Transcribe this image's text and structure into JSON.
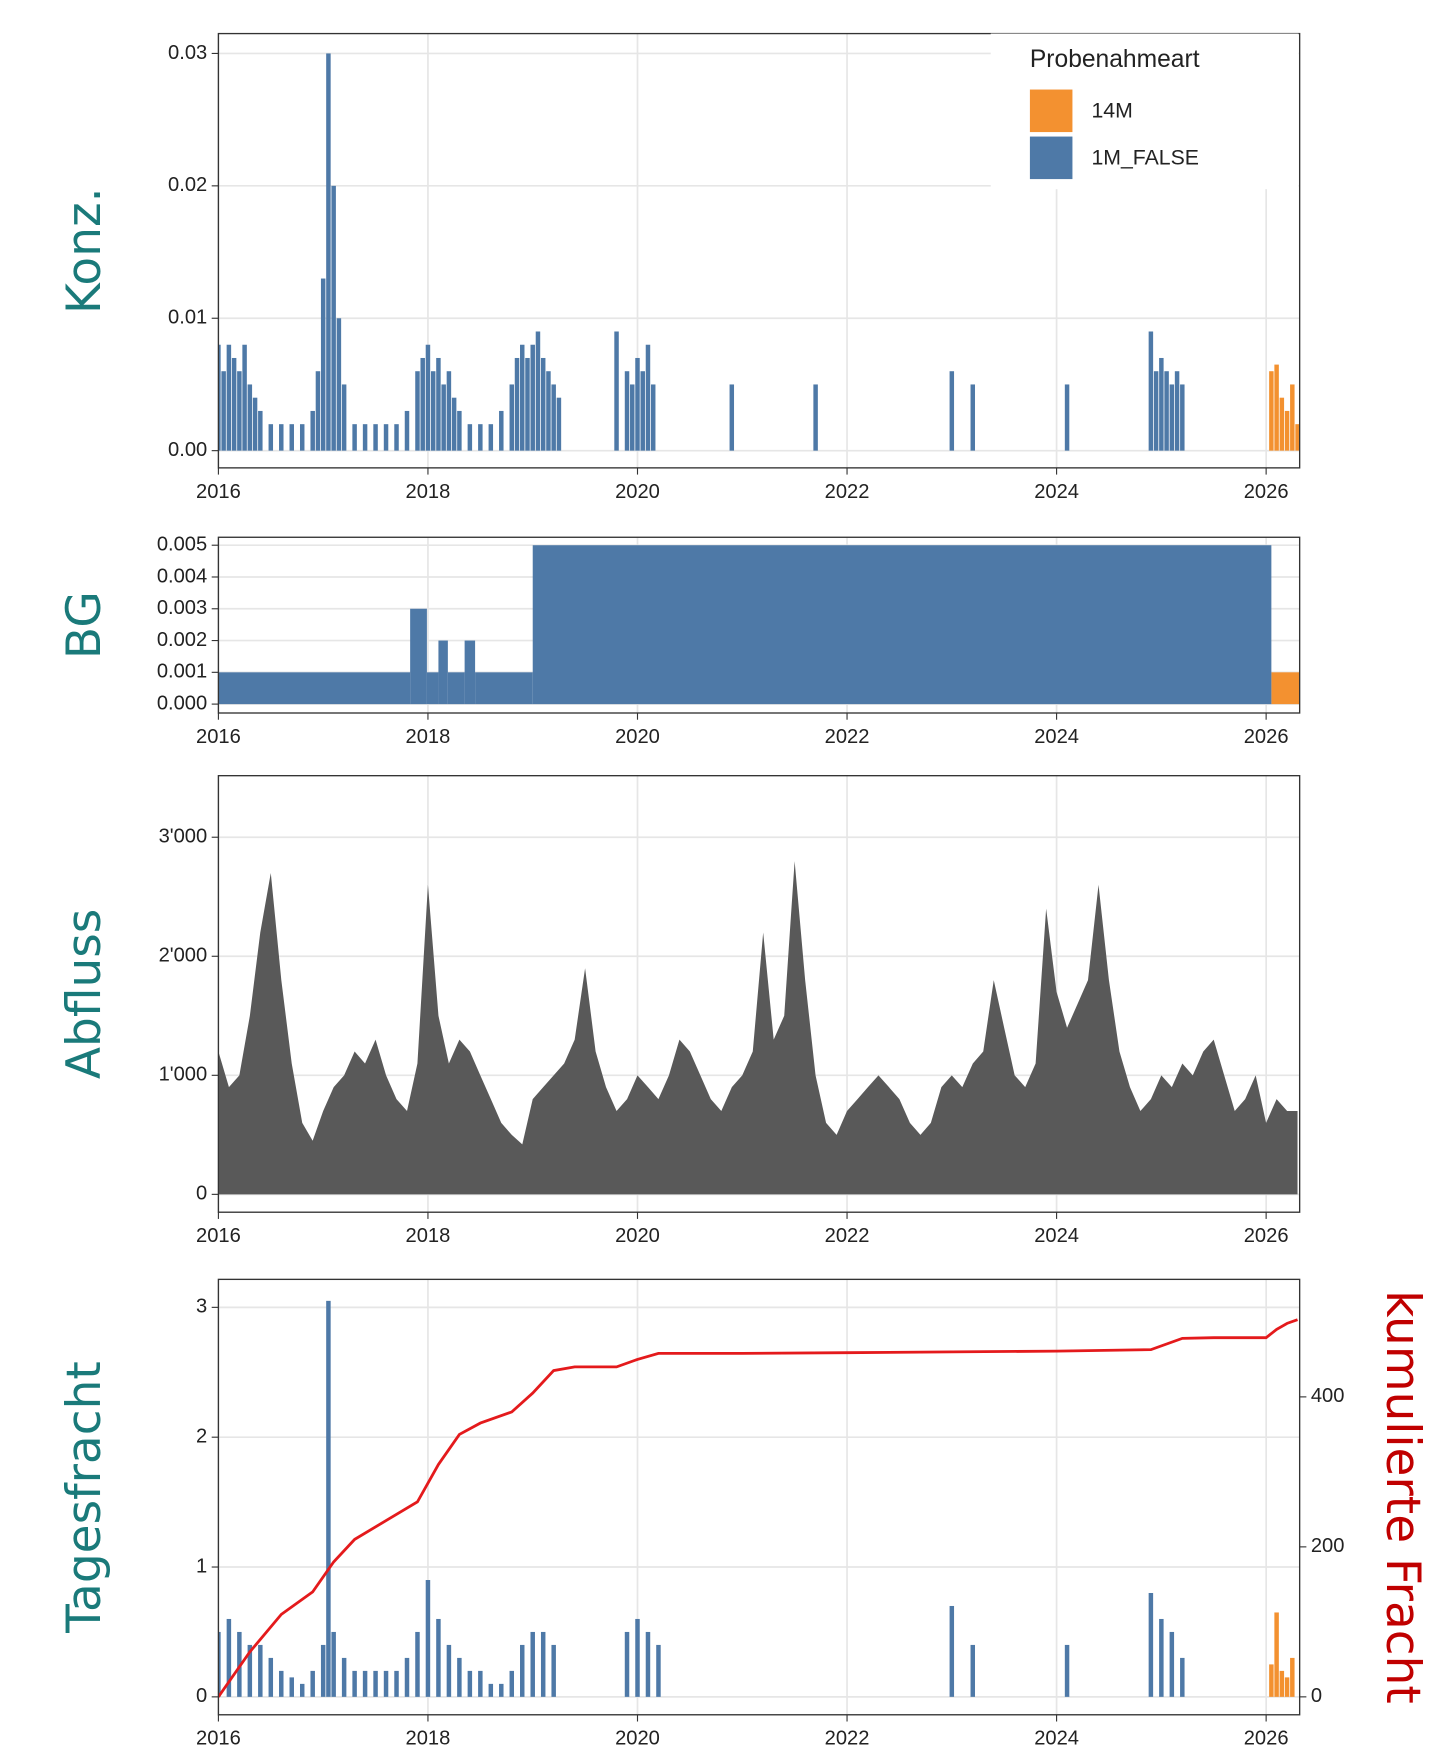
{
  "chart_data": [
    {
      "type": "bar",
      "ylabel": "Konz.",
      "legend_title": "Probenahmeart",
      "legend": "top-right",
      "grid": true,
      "xlim": [
        2016,
        2026.32
      ],
      "xticks": [
        2016,
        2018,
        2020,
        2022,
        2024,
        2026
      ],
      "ylim": [
        -0.0013,
        0.0315
      ],
      "yticks": [
        {
          "value": 0,
          "label": "0.00"
        },
        0.01,
        0.02,
        0.03
      ],
      "series": [
        {
          "name": "14M",
          "color": "#f39130",
          "x": [
            2026.05,
            2026.1,
            2026.15,
            2026.2,
            2026.25,
            2026.3
          ],
          "values": [
            0.006,
            0.0065,
            0.004,
            0.003,
            0.005,
            0.002
          ]
        },
        {
          "name": "1M_FALSE",
          "color": "#4e79a7",
          "x": [
            2016.0,
            2016.05,
            2016.1,
            2016.15,
            2016.2,
            2016.25,
            2016.3,
            2016.35,
            2016.4,
            2016.5,
            2016.6,
            2016.7,
            2016.8,
            2016.9,
            2016.95,
            2017.0,
            2017.05,
            2017.1,
            2017.15,
            2017.2,
            2017.3,
            2017.4,
            2017.5,
            2017.6,
            2017.7,
            2017.8,
            2017.9,
            2017.95,
            2018.0,
            2018.05,
            2018.1,
            2018.15,
            2018.2,
            2018.25,
            2018.3,
            2018.4,
            2018.5,
            2018.6,
            2018.7,
            2018.8,
            2018.85,
            2018.9,
            2018.95,
            2019.0,
            2019.05,
            2019.1,
            2019.15,
            2019.2,
            2019.25,
            2019.8,
            2019.9,
            2019.95,
            2020.0,
            2020.05,
            2020.1,
            2020.15,
            2020.9,
            2021.7,
            2023.0,
            2023.2,
            2024.1,
            2024.9,
            2024.95,
            2025.0,
            2025.05,
            2025.1,
            2025.15,
            2025.2
          ],
          "values": [
            0.008,
            0.006,
            0.008,
            0.007,
            0.006,
            0.008,
            0.005,
            0.004,
            0.003,
            0.002,
            0.002,
            0.002,
            0.002,
            0.003,
            0.006,
            0.013,
            0.03,
            0.02,
            0.01,
            0.005,
            0.002,
            0.002,
            0.002,
            0.002,
            0.002,
            0.003,
            0.006,
            0.007,
            0.008,
            0.006,
            0.007,
            0.005,
            0.006,
            0.004,
            0.003,
            0.002,
            0.002,
            0.002,
            0.003,
            0.005,
            0.007,
            0.008,
            0.007,
            0.008,
            0.009,
            0.007,
            0.006,
            0.005,
            0.004,
            0.009,
            0.006,
            0.005,
            0.007,
            0.006,
            0.008,
            0.005,
            0.005,
            0.005,
            0.006,
            0.005,
            0.005,
            0.009,
            0.006,
            0.007,
            0.006,
            0.005,
            0.006,
            0.005
          ]
        }
      ]
    },
    {
      "type": "step",
      "ylabel": "BG",
      "grid": true,
      "xlim": [
        2016,
        2026.32
      ],
      "xticks": [
        2016,
        2018,
        2020,
        2022,
        2024,
        2026
      ],
      "ylim": [
        -0.00028,
        0.00525
      ],
      "yticks": [
        {
          "value": 0,
          "label": "0.000"
        },
        0.001,
        0.002,
        0.003,
        0.004,
        0.005
      ],
      "series": [
        {
          "name": "14M",
          "color": "#f39130",
          "x": [
            2026.05,
            2026.32
          ],
          "values": [
            0.001,
            null
          ]
        },
        {
          "name": "1M_FALSE",
          "color": "#4e79a7",
          "x": [
            2016,
            2017.83,
            2017.99,
            2018.1,
            2018.19,
            2018.35,
            2018.45,
            2019.0,
            2026.05
          ],
          "values": [
            0.001,
            0.003,
            0.001,
            0.002,
            0.001,
            0.002,
            0.001,
            0.005,
            null
          ]
        }
      ]
    },
    {
      "type": "area",
      "ylabel": "Abfluss",
      "grid": true,
      "xlim": [
        2016,
        2026.32
      ],
      "xticks": [
        2016,
        2018,
        2020,
        2022,
        2024,
        2026
      ],
      "ylim": [
        -150,
        3517
      ],
      "yticks": [
        0,
        {
          "value": 1000,
          "label": "1'000"
        },
        {
          "value": 2000,
          "label": "2'000"
        },
        {
          "value": 3000,
          "label": "3'000"
        }
      ],
      "series": [
        {
          "color": "#595959",
          "x": [
            2016.0,
            2016.1,
            2016.2,
            2016.3,
            2016.4,
            2016.5,
            2016.6,
            2016.7,
            2016.8,
            2016.9,
            2017.0,
            2017.1,
            2017.2,
            2017.3,
            2017.4,
            2017.5,
            2017.6,
            2017.7,
            2017.8,
            2017.9,
            2018.0,
            2018.1,
            2018.2,
            2018.3,
            2018.4,
            2018.5,
            2018.6,
            2018.7,
            2018.8,
            2018.9,
            2019.0,
            2019.1,
            2019.2,
            2019.3,
            2019.4,
            2019.5,
            2019.6,
            2019.7,
            2019.8,
            2019.9,
            2020.0,
            2020.1,
            2020.2,
            2020.3,
            2020.4,
            2020.5,
            2020.6,
            2020.7,
            2020.8,
            2020.9,
            2021.0,
            2021.1,
            2021.2,
            2021.3,
            2021.4,
            2021.5,
            2021.6,
            2021.7,
            2021.8,
            2021.9,
            2022.0,
            2022.1,
            2022.2,
            2022.3,
            2022.4,
            2022.5,
            2022.6,
            2022.7,
            2022.8,
            2022.9,
            2023.0,
            2023.1,
            2023.2,
            2023.3,
            2023.4,
            2023.5,
            2023.6,
            2023.7,
            2023.8,
            2023.9,
            2024.0,
            2024.1,
            2024.2,
            2024.3,
            2024.4,
            2024.5,
            2024.6,
            2024.7,
            2024.8,
            2024.9,
            2025.0,
            2025.1,
            2025.2,
            2025.3,
            2025.4,
            2025.5,
            2025.6,
            2025.7,
            2025.8,
            2025.9,
            2026.0,
            2026.1,
            2026.2,
            2026.3
          ],
          "values": [
            1200,
            900,
            1000,
            1500,
            2200,
            2700,
            1800,
            1100,
            600,
            450,
            700,
            900,
            1000,
            1200,
            1100,
            1300,
            1000,
            800,
            700,
            1100,
            2600,
            1500,
            1100,
            1300,
            1200,
            1000,
            800,
            600,
            500,
            420,
            800,
            900,
            1000,
            1100,
            1300,
            1900,
            1200,
            900,
            700,
            800,
            1000,
            900,
            800,
            1000,
            1300,
            1200,
            1000,
            800,
            700,
            900,
            1000,
            1200,
            2200,
            1300,
            1500,
            2800,
            1800,
            1000,
            600,
            500,
            700,
            800,
            900,
            1000,
            900,
            800,
            600,
            500,
            600,
            900,
            1000,
            900,
            1100,
            1200,
            1800,
            1400,
            1000,
            900,
            1100,
            2400,
            1700,
            1400,
            1600,
            1800,
            2600,
            1800,
            1200,
            900,
            700,
            800,
            1000,
            900,
            1100,
            1000,
            1200,
            1300,
            1000,
            700,
            800,
            1000,
            600,
            800,
            700,
            700
          ]
        }
      ]
    },
    {
      "type": "bar",
      "ylabel": "Tagesfracht",
      "y2label": "kumulierte Fracht",
      "grid": true,
      "xlim": [
        2016,
        2026.32
      ],
      "xticks": [
        2016,
        2018,
        2020,
        2022,
        2024,
        2026
      ],
      "ylim": [
        -0.138,
        3.2155
      ],
      "yticks": [
        0,
        1,
        2,
        3
      ],
      "y2lim": [
        -23.9,
        556.7
      ],
      "y2ticks": [
        0,
        200,
        400
      ],
      "series": [
        {
          "color": "#f39130",
          "x": [
            2026.05,
            2026.1,
            2026.15,
            2026.2,
            2026.25
          ],
          "values": [
            0.25,
            0.65,
            0.2,
            0.15,
            0.3
          ]
        },
        {
          "color": "#4e79a7",
          "x": [
            2016.0,
            2016.1,
            2016.2,
            2016.3,
            2016.4,
            2016.5,
            2016.6,
            2016.7,
            2016.8,
            2016.9,
            2017.0,
            2017.05,
            2017.1,
            2017.2,
            2017.3,
            2017.4,
            2017.5,
            2017.6,
            2017.7,
            2017.8,
            2017.9,
            2018.0,
            2018.1,
            2018.2,
            2018.3,
            2018.4,
            2018.5,
            2018.6,
            2018.7,
            2018.8,
            2018.9,
            2019.0,
            2019.1,
            2019.2,
            2019.9,
            2020.0,
            2020.1,
            2020.2,
            2023.0,
            2023.2,
            2024.1,
            2024.9,
            2025.0,
            2025.1,
            2025.2
          ],
          "values": [
            0.5,
            0.6,
            0.5,
            0.4,
            0.4,
            0.3,
            0.2,
            0.15,
            0.1,
            0.2,
            0.4,
            3.05,
            0.5,
            0.3,
            0.2,
            0.2,
            0.2,
            0.2,
            0.2,
            0.3,
            0.5,
            0.9,
            0.6,
            0.4,
            0.3,
            0.2,
            0.2,
            0.1,
            0.1,
            0.2,
            0.4,
            0.5,
            0.5,
            0.4,
            0.5,
            0.6,
            0.5,
            0.4,
            0.7,
            0.4,
            0.4,
            0.8,
            0.6,
            0.5,
            0.3
          ]
        },
        {
          "type": "line",
          "axis": "y2",
          "color": "#e41a1c",
          "x": [
            2016.0,
            2016.3,
            2016.6,
            2016.9,
            2017.1,
            2017.3,
            2017.6,
            2017.9,
            2018.1,
            2018.3,
            2018.5,
            2018.8,
            2019.0,
            2019.2,
            2019.4,
            2019.8,
            2020.0,
            2020.2,
            2021.0,
            2022.0,
            2023.0,
            2024.0,
            2024.9,
            2025.2,
            2025.5,
            2026.0,
            2026.1,
            2026.2,
            2026.3
          ],
          "values": [
            0,
            60,
            110,
            140,
            180,
            210,
            235,
            260,
            310,
            350,
            365,
            380,
            405,
            435,
            440,
            440,
            450,
            458,
            458,
            459,
            460,
            461,
            463,
            478,
            479,
            479,
            490,
            498,
            503
          ]
        }
      ]
    }
  ]
}
